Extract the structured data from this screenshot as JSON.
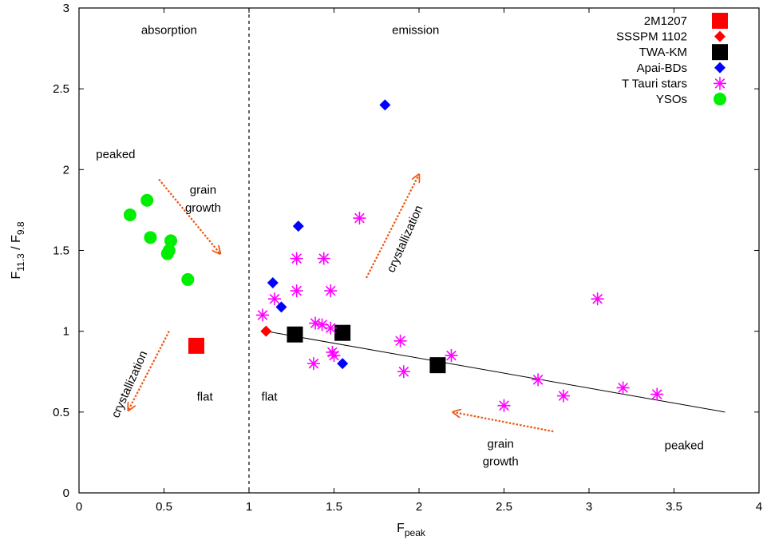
{
  "chart_data": {
    "type": "scatter",
    "xlabel": {
      "main": "F",
      "sub": "peak"
    },
    "ylabel": {
      "main": "F",
      "sub1": "11.3",
      "sep": " / F",
      "sub2": "9.8"
    },
    "xlim": [
      0,
      4
    ],
    "ylim": [
      0,
      3
    ],
    "xticks": [
      0,
      0.5,
      1,
      1.5,
      2,
      2.5,
      3,
      3.5,
      4
    ],
    "xtick_labels": [
      "0",
      "0.5",
      "1",
      "1.5",
      "2",
      "2.5",
      "3",
      "3.5",
      "4"
    ],
    "yticks": [
      0,
      0.5,
      1,
      1.5,
      2,
      2.5,
      3
    ],
    "ytick_labels": [
      "0",
      "0.5",
      "1",
      "1.5",
      "2",
      "2.5",
      "3"
    ],
    "grid": false,
    "legend_position": "top-right",
    "vertical_divider_x": 1,
    "series": [
      {
        "name": "2M1207",
        "marker": "square",
        "color": "#ff0000",
        "size": 20,
        "points": [
          [
            0.69,
            0.91
          ]
        ]
      },
      {
        "name": "SSSPM 1102",
        "marker": "diamond",
        "color": "#ff0000",
        "size": 14,
        "points": [
          [
            1.1,
            1.0
          ]
        ]
      },
      {
        "name": "TWA-KM",
        "marker": "square",
        "color": "#000000",
        "size": 20,
        "points": [
          [
            1.27,
            0.98
          ],
          [
            1.55,
            0.99
          ],
          [
            2.11,
            0.79
          ]
        ]
      },
      {
        "name": "Apai-BDs",
        "marker": "diamond",
        "color": "#0000ff",
        "size": 14,
        "points": [
          [
            1.8,
            2.4
          ],
          [
            1.29,
            1.65
          ],
          [
            1.14,
            1.3
          ],
          [
            1.19,
            1.15
          ],
          [
            1.55,
            0.8
          ]
        ]
      },
      {
        "name": "T Tauri stars",
        "marker": "asterisk",
        "color": "#ff00ff",
        "size": 16,
        "points": [
          [
            1.65,
            1.7
          ],
          [
            1.28,
            1.45
          ],
          [
            1.44,
            1.45
          ],
          [
            1.28,
            1.25
          ],
          [
            1.48,
            1.25
          ],
          [
            1.15,
            1.2
          ],
          [
            1.08,
            1.1
          ],
          [
            1.39,
            1.05
          ],
          [
            1.43,
            1.04
          ],
          [
            1.48,
            1.02
          ],
          [
            1.49,
            0.87
          ],
          [
            1.5,
            0.85
          ],
          [
            1.38,
            0.8
          ],
          [
            1.89,
            0.94
          ],
          [
            1.91,
            0.75
          ],
          [
            2.19,
            0.85
          ],
          [
            3.05,
            1.2
          ],
          [
            2.7,
            0.7
          ],
          [
            2.85,
            0.6
          ],
          [
            2.5,
            0.54
          ],
          [
            3.2,
            0.65
          ],
          [
            3.4,
            0.61
          ]
        ]
      },
      {
        "name": "YSOs",
        "marker": "circle",
        "color": "#00ee00",
        "size": 16,
        "points": [
          [
            0.3,
            1.72
          ],
          [
            0.4,
            1.81
          ],
          [
            0.42,
            1.58
          ],
          [
            0.54,
            1.56
          ],
          [
            0.53,
            1.5
          ],
          [
            0.52,
            1.48
          ],
          [
            0.64,
            1.32
          ]
        ]
      }
    ],
    "fit_line": {
      "x": [
        1.1,
        3.8
      ],
      "y": [
        1.0,
        0.5
      ],
      "color": "#000000"
    },
    "annotations": [
      {
        "text": "absorption",
        "x": 0.53,
        "y": 2.86,
        "anchor": "middle",
        "rotate": 0
      },
      {
        "text": "emission",
        "x": 1.98,
        "y": 2.86,
        "anchor": "middle",
        "rotate": 0
      },
      {
        "text": "peaked",
        "x": 0.1,
        "y": 2.09,
        "anchor": "start",
        "rotate": 0
      },
      {
        "text": "grain",
        "x": 0.73,
        "y": 1.87,
        "anchor": "middle",
        "rotate": 0
      },
      {
        "text": "growth",
        "x": 0.73,
        "y": 1.76,
        "anchor": "middle",
        "rotate": 0
      },
      {
        "text": "crystallization",
        "x": 1.92,
        "y": 1.57,
        "anchor": "middle",
        "rotate": -66
      },
      {
        "text": "crystallization",
        "x": 0.3,
        "y": 0.67,
        "anchor": "middle",
        "rotate": -66
      },
      {
        "text": "flat",
        "x": 0.74,
        "y": 0.59,
        "anchor": "middle",
        "rotate": 0
      },
      {
        "text": "flat",
        "x": 1.12,
        "y": 0.59,
        "anchor": "middle",
        "rotate": 0
      },
      {
        "text": "grain",
        "x": 2.48,
        "y": 0.3,
        "anchor": "middle",
        "rotate": 0
      },
      {
        "text": "growth",
        "x": 2.48,
        "y": 0.19,
        "anchor": "middle",
        "rotate": 0
      },
      {
        "text": "peaked",
        "x": 3.56,
        "y": 0.29,
        "anchor": "middle",
        "rotate": 0
      }
    ],
    "arrows": [
      {
        "from": [
          0.47,
          1.94
        ],
        "to": [
          0.83,
          1.48
        ],
        "color": "#ee5511"
      },
      {
        "from": [
          1.69,
          1.33
        ],
        "to": [
          2.0,
          1.97
        ],
        "color": "#ee5511"
      },
      {
        "from": [
          0.53,
          1.0
        ],
        "to": [
          0.29,
          0.51
        ],
        "color": "#ee5511"
      },
      {
        "from": [
          2.79,
          0.38
        ],
        "to": [
          2.2,
          0.5
        ],
        "color": "#ee5511"
      }
    ]
  }
}
